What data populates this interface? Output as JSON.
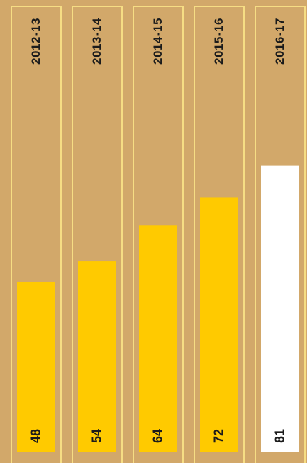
{
  "chart_data": {
    "type": "bar",
    "orientation": "vertical",
    "categories": [
      "2012-13",
      "2013-14",
      "2014-15",
      "2015-16",
      "2016-17"
    ],
    "values": [
      48,
      54,
      64,
      72,
      81
    ],
    "data_labels": [
      "48",
      "54",
      "64",
      "72",
      "81"
    ],
    "colors": {
      "background": "#D2A86A",
      "panel_border": "#F6DD84",
      "bar": "#FFCA00",
      "highlight_bar": "#FFFFFF"
    },
    "highlight_index": 4,
    "grid": false,
    "legend": "none"
  }
}
